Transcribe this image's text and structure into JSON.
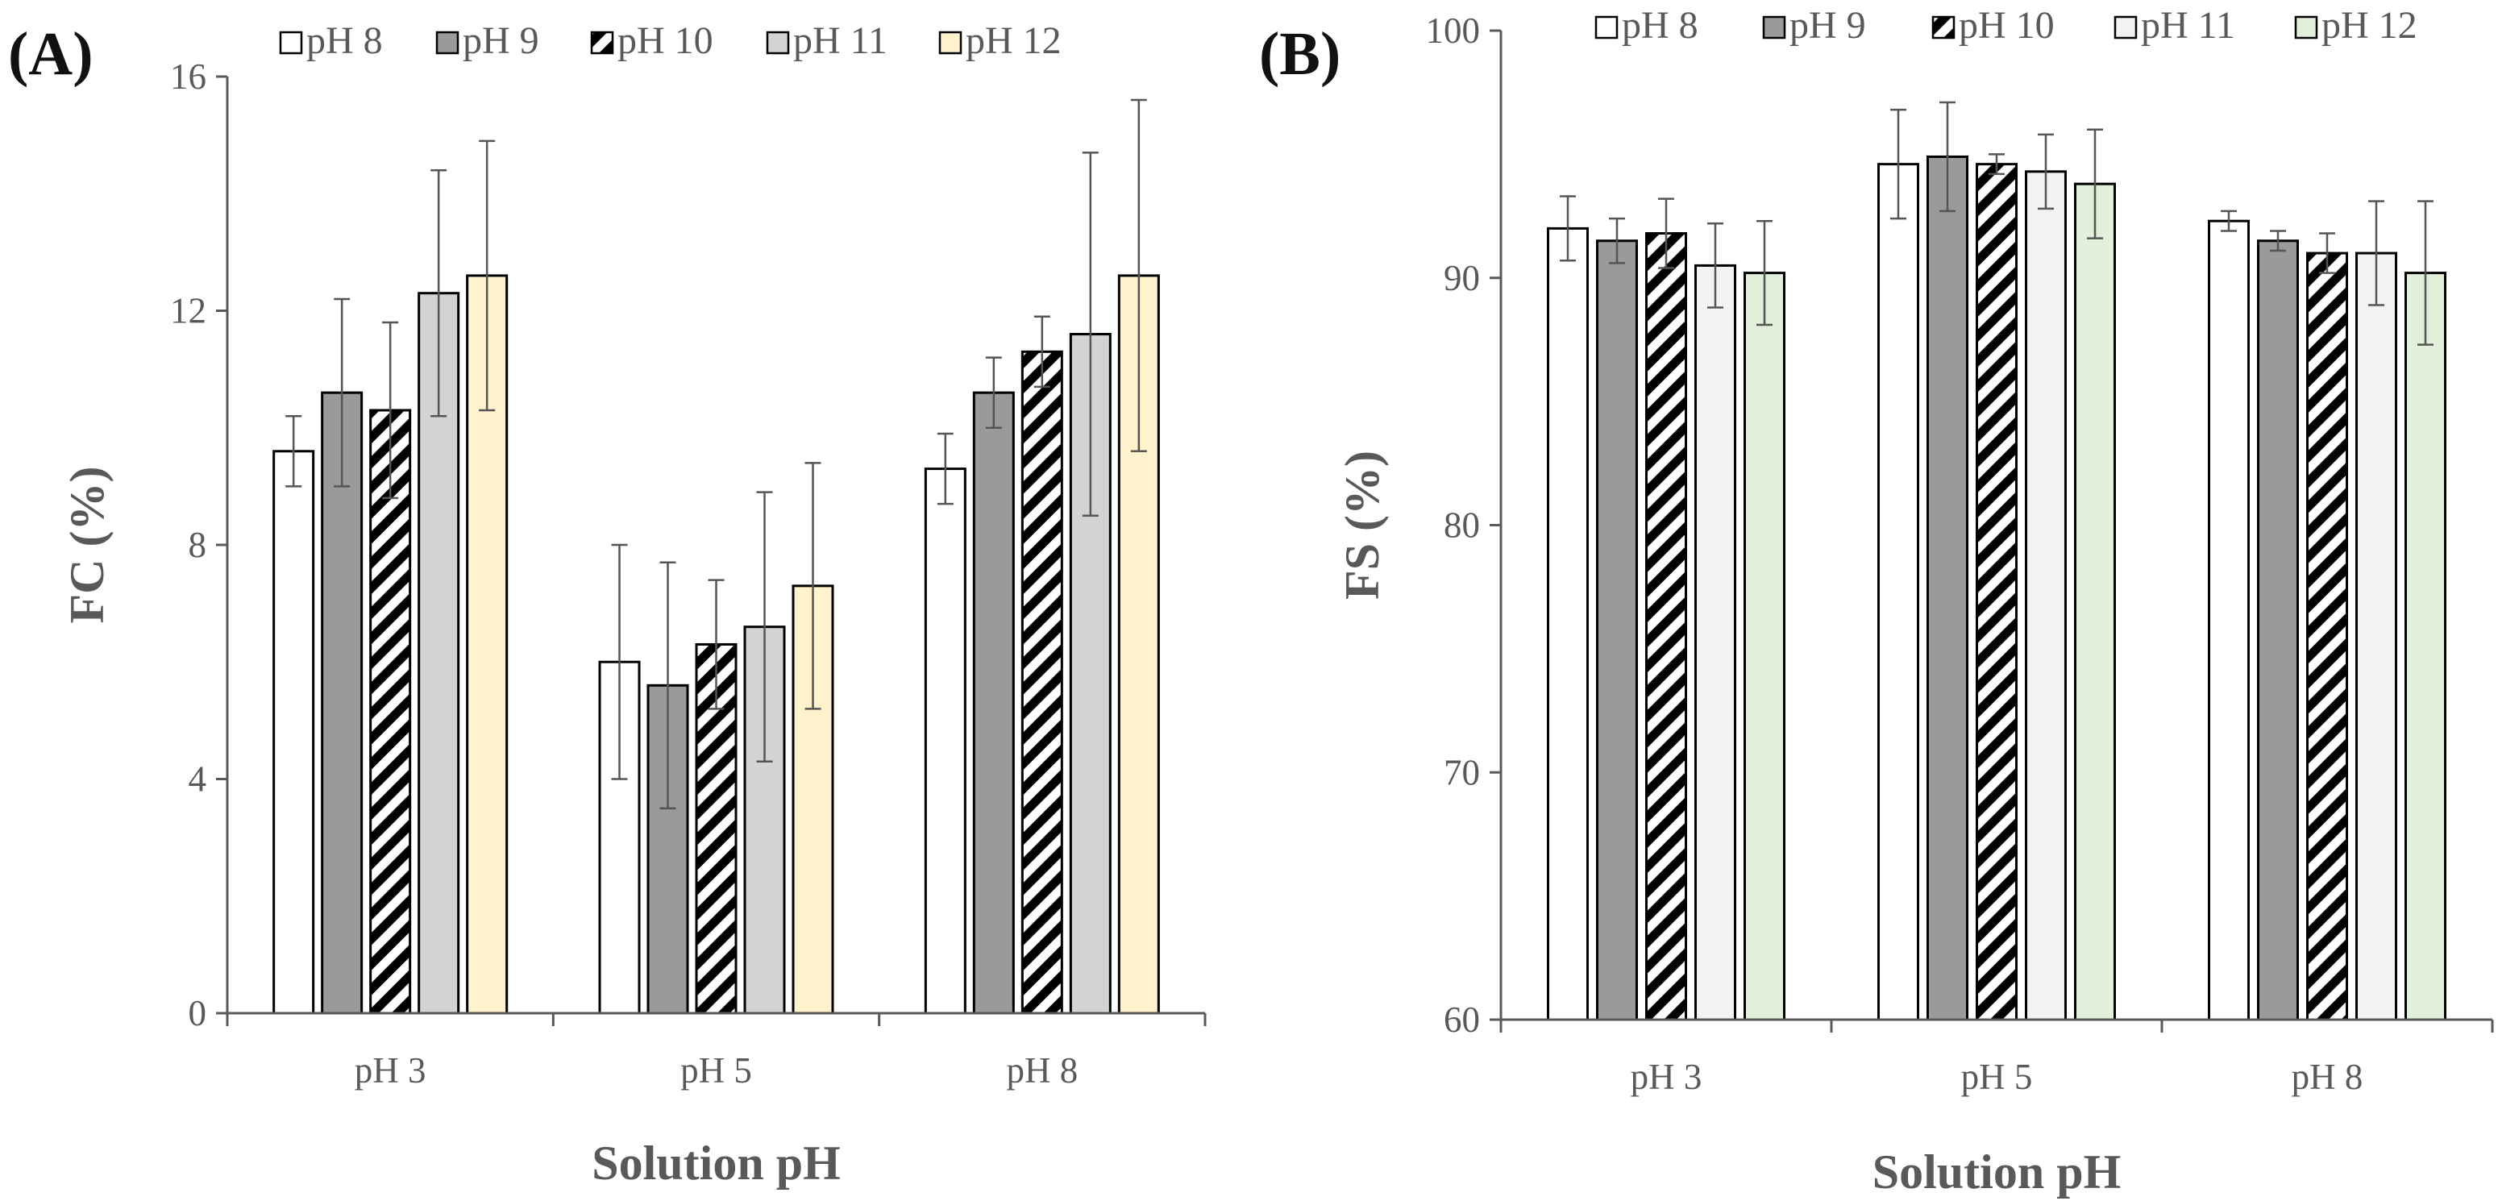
{
  "chart_data": [
    {
      "panel": "(A)",
      "type": "bar",
      "xlabel": "Solution pH",
      "ylabel": "FC (%)",
      "ylim": [
        0,
        16
      ],
      "yticks": [
        "0",
        "4",
        "8",
        "12",
        "16"
      ],
      "categories": [
        "pH 3",
        "pH 5",
        "pH 8"
      ],
      "series": [
        {
          "name": "pH 8",
          "values": [
            9.6,
            6.0,
            9.3
          ],
          "errors": [
            0.6,
            2.0,
            0.6
          ],
          "fill": "#ffffff",
          "pattern": "none"
        },
        {
          "name": "pH 9",
          "values": [
            10.6,
            5.6,
            10.6
          ],
          "errors": [
            1.6,
            2.1,
            0.6
          ],
          "fill": "#9a9a9a",
          "pattern": "none"
        },
        {
          "name": "pH 10",
          "values": [
            10.3,
            6.3,
            11.3
          ],
          "errors": [
            1.5,
            1.1,
            0.6
          ],
          "fill": "#ffffff",
          "pattern": "stripes"
        },
        {
          "name": "pH 11",
          "values": [
            12.3,
            6.6,
            11.6
          ],
          "errors": [
            2.1,
            2.3,
            3.1
          ],
          "fill": "#d3d3d3",
          "pattern": "none"
        },
        {
          "name": "pH 12",
          "values": [
            12.6,
            7.3,
            12.6
          ],
          "errors": [
            2.3,
            2.1,
            3.0
          ],
          "fill": "#fff2cc",
          "pattern": "none"
        }
      ]
    },
    {
      "panel": "(B)",
      "type": "bar",
      "xlabel": "Solution pH",
      "ylabel": "FS (%)",
      "ylim": [
        60,
        100
      ],
      "yticks": [
        "60",
        "70",
        "80",
        "90",
        "100"
      ],
      "categories": [
        "pH 3",
        "pH 5",
        "pH 8"
      ],
      "series": [
        {
          "name": "pH 8",
          "values": [
            92.0,
            94.6,
            92.3
          ],
          "errors": [
            1.3,
            2.2,
            0.4
          ],
          "fill": "#ffffff",
          "pattern": "none"
        },
        {
          "name": "pH 9",
          "values": [
            91.5,
            94.9,
            91.5
          ],
          "errors": [
            0.9,
            2.2,
            0.4
          ],
          "fill": "#9a9a9a",
          "pattern": "none"
        },
        {
          "name": "pH 10",
          "values": [
            91.8,
            94.6,
            91.0
          ],
          "errors": [
            1.4,
            0.4,
            0.8
          ],
          "fill": "#ffffff",
          "pattern": "stripes"
        },
        {
          "name": "pH 11",
          "values": [
            90.5,
            94.3,
            91.0
          ],
          "errors": [
            1.7,
            1.5,
            2.1
          ],
          "fill": "#f2f2f2",
          "pattern": "none"
        },
        {
          "name": "pH 12",
          "values": [
            90.2,
            93.8,
            90.2
          ],
          "errors": [
            2.1,
            2.2,
            2.9
          ],
          "fill": "#e2efda",
          "pattern": "none"
        }
      ]
    }
  ]
}
